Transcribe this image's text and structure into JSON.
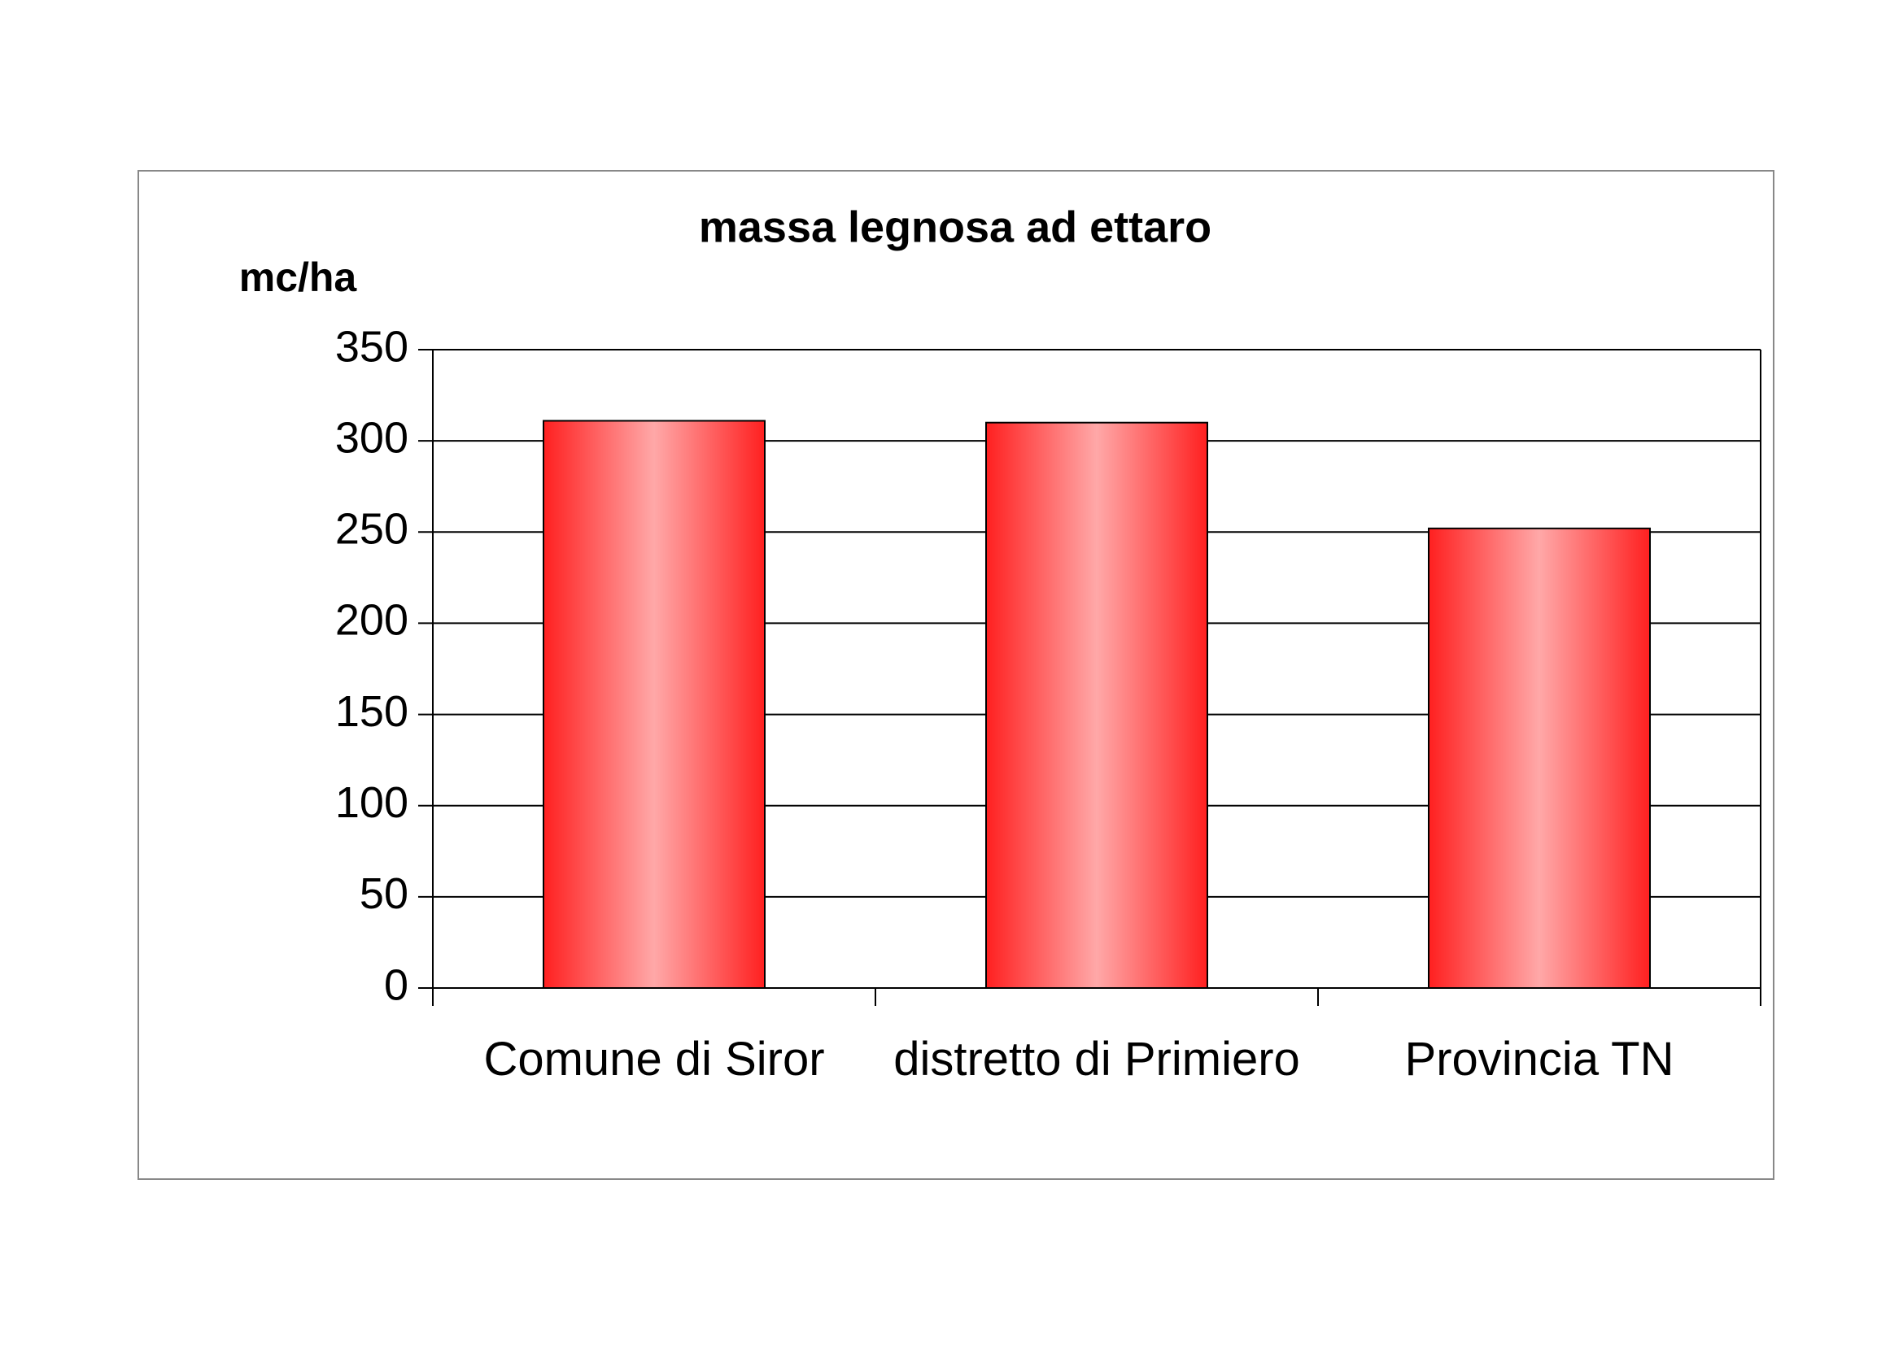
{
  "chart_data": {
    "type": "bar",
    "title": "massa legnosa ad ettaro",
    "y_label": "mc/ha",
    "categories": [
      "Comune di Siror",
      "distretto di Primiero",
      "Provincia TN"
    ],
    "values": [
      311,
      310,
      252
    ],
    "color": "#ff2020",
    "ylim": [
      0,
      350
    ],
    "yticks": [
      0,
      50,
      100,
      150,
      200,
      250,
      300,
      350
    ],
    "grid": true
  }
}
